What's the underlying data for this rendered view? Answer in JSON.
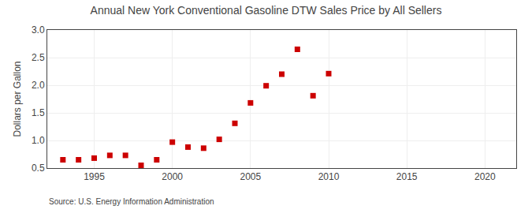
{
  "chart_data": {
    "type": "scatter",
    "title": "Annual New York Conventional Gasoline DTW Sales Price by All Sellers",
    "ylabel": "Dollars per Gallon",
    "annotations": [
      "Source: U.S. Energy Information Administration"
    ],
    "x": [
      1993,
      1994,
      1995,
      1996,
      1997,
      1998,
      1999,
      2000,
      2001,
      2002,
      2003,
      2004,
      2005,
      2006,
      2007,
      2008,
      2009,
      2010
    ],
    "values": [
      0.65,
      0.65,
      0.68,
      0.73,
      0.73,
      0.55,
      0.65,
      0.97,
      0.88,
      0.86,
      1.02,
      1.31,
      1.68,
      1.99,
      2.2,
      2.65,
      1.81,
      2.21
    ],
    "color": "#cc0000",
    "marker": "square",
    "xlim": [
      1992,
      2022
    ],
    "ylim": [
      0.5,
      3.0
    ],
    "xticks": [
      1995,
      2000,
      2005,
      2010,
      2015,
      2020
    ],
    "yticks": [
      0.5,
      {
        "value": 1.0,
        "label": "1.0"
      },
      1.5,
      {
        "value": 2.0,
        "label": "2.0"
      },
      2.5,
      {
        "value": 3.0,
        "label": "3.0"
      }
    ],
    "grid": true
  }
}
